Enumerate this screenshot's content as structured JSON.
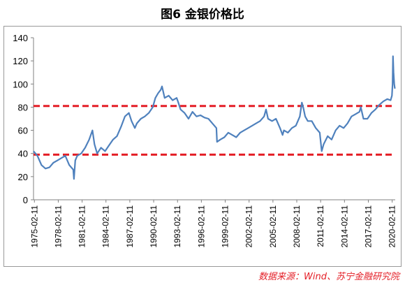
{
  "page": {
    "title": "图6  金银价格比",
    "source": "数据来源：Wind、苏宁金融研究院"
  },
  "colors": {
    "series": "#4f81bd",
    "reference": "#e41e26",
    "axis": "#808080"
  },
  "chart_data": {
    "type": "line",
    "title": "图6  金银价格比",
    "xlabel": "",
    "ylabel": "",
    "ylim": [
      0,
      140
    ],
    "yticks": [
      0,
      20,
      40,
      60,
      80,
      100,
      120,
      140
    ],
    "xticks": [
      "1975-02-11",
      "1978-02-11",
      "1981-02-11",
      "1984-02-11",
      "1987-02-11",
      "1990-02-11",
      "1993-02-11",
      "1996-02-11",
      "1999-02-11",
      "2002-02-11",
      "2005-02-11",
      "2008-02-11",
      "2011-02-11",
      "2014-02-11",
      "2017-02-11",
      "2020-02-11"
    ],
    "x_range": [
      "1975-01-01",
      "2020-06-30"
    ],
    "grid": false,
    "reference_lines": [
      {
        "value": 81,
        "style": "dashed"
      },
      {
        "value": 39,
        "style": "dashed"
      }
    ],
    "series": [
      {
        "x": [
          "1975-01-01",
          "1975-07-01",
          "1976-01-01",
          "1976-07-01",
          "1977-01-01",
          "1977-07-01",
          "1978-01-01",
          "1978-07-01",
          "1979-01-01",
          "1979-07-01",
          "1980-01-01",
          "1980-02-01",
          "1980-04-01",
          "1980-07-01",
          "1981-01-01",
          "1981-07-01",
          "1982-01-01",
          "1982-06-01",
          "1982-09-01",
          "1983-01-01",
          "1983-07-01",
          "1984-01-01",
          "1984-07-01",
          "1985-01-01",
          "1985-07-01",
          "1986-01-01",
          "1986-07-01",
          "1987-01-01",
          "1987-05-01",
          "1987-10-01",
          "1988-01-01",
          "1988-07-01",
          "1989-01-01",
          "1989-07-01",
          "1990-01-01",
          "1990-05-01",
          "1990-09-01",
          "1991-01-01",
          "1991-03-01",
          "1991-07-01",
          "1992-01-01",
          "1992-07-01",
          "1993-01-01",
          "1993-03-01",
          "1993-07-01",
          "1994-01-01",
          "1994-07-01",
          "1995-01-01",
          "1995-07-01",
          "1996-01-01",
          "1996-07-01",
          "1997-01-01",
          "1997-07-01",
          "1998-01-01",
          "1998-02-01",
          "1998-07-01",
          "1999-01-01",
          "1999-07-01",
          "2000-01-01",
          "2000-07-01",
          "2001-01-01",
          "2001-07-01",
          "2002-01-01",
          "2002-07-01",
          "2003-01-01",
          "2003-07-01",
          "2004-01-01",
          "2004-04-01",
          "2004-07-01",
          "2005-01-01",
          "2005-07-01",
          "2006-01-01",
          "2006-05-01",
          "2006-07-01",
          "2007-01-01",
          "2007-07-01",
          "2008-01-01",
          "2008-07-01",
          "2008-10-01",
          "2008-12-01",
          "2009-03-01",
          "2009-07-01",
          "2010-01-01",
          "2010-07-01",
          "2011-01-01",
          "2011-04-01",
          "2011-07-01",
          "2012-01-01",
          "2012-07-01",
          "2013-01-01",
          "2013-07-01",
          "2014-01-01",
          "2014-07-01",
          "2015-01-01",
          "2015-07-01",
          "2016-01-01",
          "2016-03-01",
          "2016-07-01",
          "2017-01-01",
          "2017-07-01",
          "2018-01-01",
          "2018-07-01",
          "2019-01-01",
          "2019-07-01",
          "2019-12-01",
          "2020-02-01",
          "2020-03-01",
          "2020-03-20",
          "2020-04-15",
          "2020-05-15",
          "2020-06-15"
        ],
        "values": [
          42,
          38,
          30,
          27,
          28,
          32,
          34,
          36,
          38,
          30,
          26,
          18,
          34,
          38,
          40,
          45,
          52,
          60,
          48,
          40,
          45,
          42,
          47,
          52,
          55,
          63,
          72,
          75,
          68,
          62,
          66,
          70,
          72,
          75,
          80,
          88,
          92,
          95,
          98,
          88,
          90,
          86,
          88,
          85,
          78,
          75,
          70,
          76,
          72,
          73,
          71,
          70,
          66,
          62,
          50,
          52,
          54,
          58,
          56,
          54,
          58,
          60,
          62,
          64,
          66,
          68,
          72,
          78,
          70,
          68,
          70,
          62,
          56,
          60,
          58,
          62,
          64,
          72,
          84,
          80,
          72,
          68,
          68,
          62,
          58,
          42,
          48,
          55,
          52,
          60,
          64,
          62,
          66,
          72,
          74,
          76,
          80,
          70,
          70,
          75,
          78,
          82,
          85,
          87,
          86,
          90,
          100,
          124,
          110,
          100,
          96
        ]
      }
    ]
  }
}
